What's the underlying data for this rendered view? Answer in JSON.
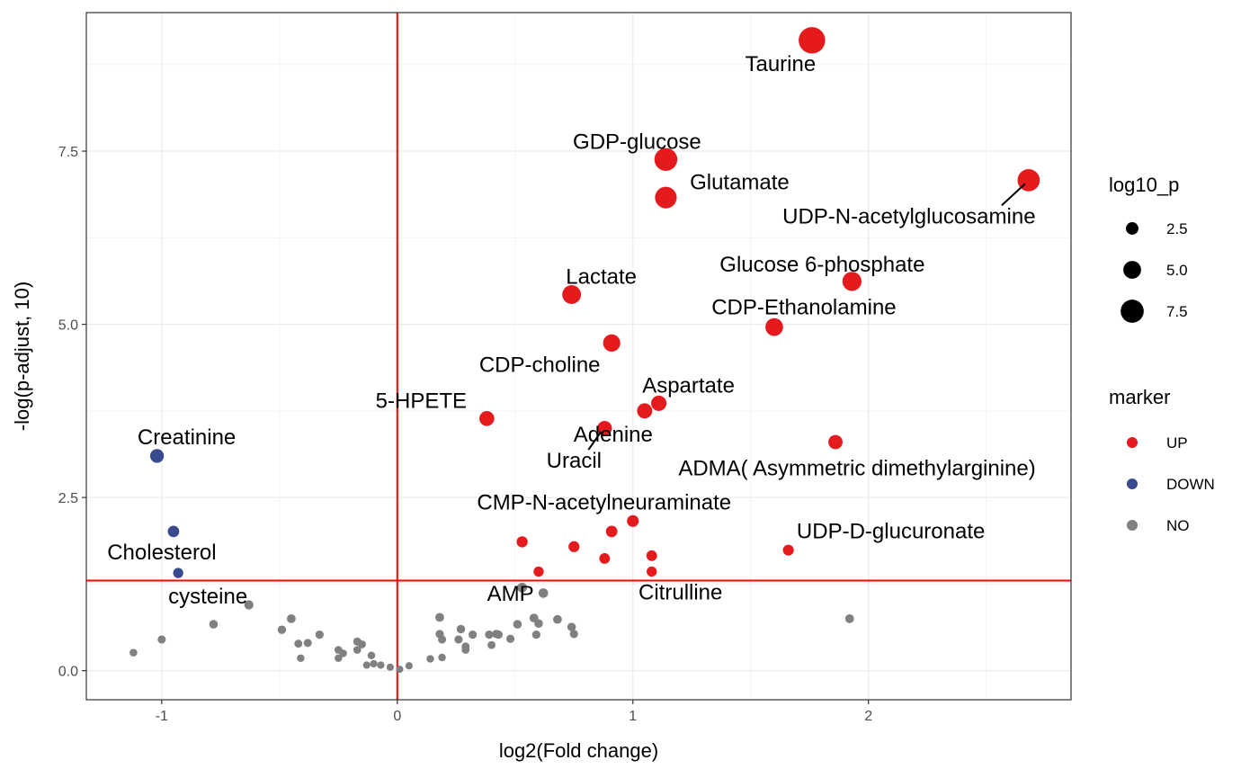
{
  "chart_data": {
    "type": "scatter",
    "title": "",
    "xlabel": "log2(Fold change)",
    "ylabel": "-log(p-adjust, 10)",
    "xlim": [
      -1.32,
      2.86
    ],
    "ylim": [
      -0.42,
      9.5
    ],
    "x_ticks": [
      -1,
      0,
      1,
      2
    ],
    "x_tick_labels": [
      "-1",
      "0",
      "1",
      "2"
    ],
    "y_ticks": [
      0,
      2.5,
      5,
      7.5
    ],
    "y_tick_labels": [
      "0.0",
      "2.5",
      "5.0",
      "7.5"
    ],
    "grid": true,
    "reference_lines": {
      "vline_x": 0,
      "hline_y": 1.3,
      "color": "#ff0000"
    },
    "colors": {
      "UP": "#e41a1c",
      "DOWN": "#3a4a8f",
      "NO": "#808080"
    },
    "size_legend": {
      "title": "log10_p",
      "values": [
        2.5,
        5.0,
        7.5
      ],
      "labels": [
        "2.5",
        "5.0",
        "7.5"
      ]
    },
    "color_legend": {
      "title": "marker",
      "entries": [
        "UP",
        "DOWN",
        "NO"
      ]
    },
    "legend_position": "right",
    "labeled_points": [
      {
        "label": "Taurine",
        "x": 1.76,
        "y": 9.1,
        "marker": "UP"
      },
      {
        "label": "GDP-glucose",
        "x": 1.14,
        "y": 7.38,
        "marker": "UP"
      },
      {
        "label": "Glutamate",
        "x": 1.14,
        "y": 6.83,
        "marker": "UP"
      },
      {
        "label": "UDP-N-acetylglucosamine",
        "x": 2.68,
        "y": 7.08,
        "marker": "UP"
      },
      {
        "label": "Lactate",
        "x": 0.74,
        "y": 5.43,
        "marker": "UP"
      },
      {
        "label": "Glucose 6-phosphate",
        "x": 1.93,
        "y": 5.62,
        "marker": "UP"
      },
      {
        "label": "CDP-Ethanolamine",
        "x": 1.6,
        "y": 4.96,
        "marker": "UP"
      },
      {
        "label": "CDP-choline",
        "x": 0.91,
        "y": 4.73,
        "marker": "UP"
      },
      {
        "label": "Aspartate",
        "x": 1.11,
        "y": 3.86,
        "marker": "UP"
      },
      {
        "label": "5-HPETE",
        "x": 0.38,
        "y": 3.64,
        "marker": "UP"
      },
      {
        "label": "Adenine",
        "x": 1.05,
        "y": 3.75,
        "marker": "UP"
      },
      {
        "label": "Uracil",
        "x": 0.88,
        "y": 3.5,
        "marker": "UP"
      },
      {
        "label": "ADMA( Asymmetric dimethylarginine)",
        "x": 1.86,
        "y": 3.3,
        "marker": "UP"
      },
      {
        "label": "Creatinine",
        "x": -1.02,
        "y": 3.1,
        "marker": "DOWN"
      },
      {
        "label": "CMP-N-acetylneuraminate",
        "x": 1.0,
        "y": 2.16,
        "marker": "UP"
      },
      {
        "label": "UDP-D-glucuronate",
        "x": 1.66,
        "y": 1.74,
        "marker": "UP"
      },
      {
        "label": "Cholesterol",
        "x": -0.95,
        "y": 2.01,
        "marker": "DOWN"
      },
      {
        "label": "cysteine",
        "x": -0.93,
        "y": 1.41,
        "marker": "DOWN"
      },
      {
        "label": "AMP",
        "x": 0.53,
        "y": 1.2,
        "marker": "NO"
      },
      {
        "label": "Citrulline",
        "x": 1.08,
        "y": 1.43,
        "marker": "UP"
      }
    ],
    "points": [
      {
        "x": 1.76,
        "y": 9.1,
        "marker": "UP"
      },
      {
        "x": 1.14,
        "y": 7.38,
        "marker": "UP"
      },
      {
        "x": 1.14,
        "y": 6.83,
        "marker": "UP"
      },
      {
        "x": 2.68,
        "y": 7.08,
        "marker": "UP"
      },
      {
        "x": 0.74,
        "y": 5.43,
        "marker": "UP"
      },
      {
        "x": 1.93,
        "y": 5.62,
        "marker": "UP"
      },
      {
        "x": 1.6,
        "y": 4.96,
        "marker": "UP"
      },
      {
        "x": 0.91,
        "y": 4.73,
        "marker": "UP"
      },
      {
        "x": 1.11,
        "y": 3.86,
        "marker": "UP"
      },
      {
        "x": 1.05,
        "y": 3.75,
        "marker": "UP"
      },
      {
        "x": 0.38,
        "y": 3.64,
        "marker": "UP"
      },
      {
        "x": 0.88,
        "y": 3.5,
        "marker": "UP"
      },
      {
        "x": 1.86,
        "y": 3.3,
        "marker": "UP"
      },
      {
        "x": -1.02,
        "y": 3.1,
        "marker": "DOWN"
      },
      {
        "x": 1.0,
        "y": 2.16,
        "marker": "UP"
      },
      {
        "x": 0.91,
        "y": 2.01,
        "marker": "UP"
      },
      {
        "x": 0.53,
        "y": 1.86,
        "marker": "UP"
      },
      {
        "x": 0.75,
        "y": 1.79,
        "marker": "UP"
      },
      {
        "x": 1.66,
        "y": 1.74,
        "marker": "UP"
      },
      {
        "x": 1.08,
        "y": 1.66,
        "marker": "UP"
      },
      {
        "x": 0.88,
        "y": 1.62,
        "marker": "UP"
      },
      {
        "x": 0.6,
        "y": 1.43,
        "marker": "UP"
      },
      {
        "x": 1.08,
        "y": 1.43,
        "marker": "UP"
      },
      {
        "x": -0.95,
        "y": 2.01,
        "marker": "DOWN"
      },
      {
        "x": -0.93,
        "y": 1.41,
        "marker": "DOWN"
      },
      {
        "x": 0.53,
        "y": 1.2,
        "marker": "NO"
      },
      {
        "x": 0.62,
        "y": 1.12,
        "marker": "NO"
      },
      {
        "x": 1.92,
        "y": 0.75,
        "marker": "NO"
      },
      {
        "x": -0.63,
        "y": 0.95,
        "marker": "NO"
      },
      {
        "x": -0.45,
        "y": 0.75,
        "marker": "NO"
      },
      {
        "x": -0.78,
        "y": 0.67,
        "marker": "NO"
      },
      {
        "x": -0.49,
        "y": 0.59,
        "marker": "NO"
      },
      {
        "x": -0.33,
        "y": 0.52,
        "marker": "NO"
      },
      {
        "x": -0.42,
        "y": 0.39,
        "marker": "NO"
      },
      {
        "x": -0.38,
        "y": 0.4,
        "marker": "NO"
      },
      {
        "x": -1.0,
        "y": 0.45,
        "marker": "NO"
      },
      {
        "x": -1.12,
        "y": 0.26,
        "marker": "NO"
      },
      {
        "x": -0.25,
        "y": 0.3,
        "marker": "NO"
      },
      {
        "x": -0.23,
        "y": 0.25,
        "marker": "NO"
      },
      {
        "x": -0.17,
        "y": 0.42,
        "marker": "NO"
      },
      {
        "x": -0.15,
        "y": 0.38,
        "marker": "NO"
      },
      {
        "x": -0.17,
        "y": 0.3,
        "marker": "NO"
      },
      {
        "x": -0.41,
        "y": 0.18,
        "marker": "NO"
      },
      {
        "x": -0.25,
        "y": 0.18,
        "marker": "NO"
      },
      {
        "x": -0.11,
        "y": 0.22,
        "marker": "NO"
      },
      {
        "x": -0.13,
        "y": 0.08,
        "marker": "NO"
      },
      {
        "x": -0.1,
        "y": 0.1,
        "marker": "NO"
      },
      {
        "x": -0.07,
        "y": 0.08,
        "marker": "NO"
      },
      {
        "x": -0.03,
        "y": 0.05,
        "marker": "NO"
      },
      {
        "x": 0.01,
        "y": 0.02,
        "marker": "NO"
      },
      {
        "x": 0.05,
        "y": 0.07,
        "marker": "NO"
      },
      {
        "x": 0.14,
        "y": 0.17,
        "marker": "NO"
      },
      {
        "x": 0.18,
        "y": 0.77,
        "marker": "NO"
      },
      {
        "x": 0.18,
        "y": 0.53,
        "marker": "NO"
      },
      {
        "x": 0.19,
        "y": 0.45,
        "marker": "NO"
      },
      {
        "x": 0.19,
        "y": 0.19,
        "marker": "NO"
      },
      {
        "x": 0.26,
        "y": 0.45,
        "marker": "NO"
      },
      {
        "x": 0.27,
        "y": 0.6,
        "marker": "NO"
      },
      {
        "x": 0.29,
        "y": 0.35,
        "marker": "NO"
      },
      {
        "x": 0.29,
        "y": 0.3,
        "marker": "NO"
      },
      {
        "x": 0.32,
        "y": 0.52,
        "marker": "NO"
      },
      {
        "x": 0.39,
        "y": 0.52,
        "marker": "NO"
      },
      {
        "x": 0.4,
        "y": 0.37,
        "marker": "NO"
      },
      {
        "x": 0.42,
        "y": 0.53,
        "marker": "NO"
      },
      {
        "x": 0.43,
        "y": 0.52,
        "marker": "NO"
      },
      {
        "x": 0.48,
        "y": 0.46,
        "marker": "NO"
      },
      {
        "x": 0.51,
        "y": 0.67,
        "marker": "NO"
      },
      {
        "x": 0.58,
        "y": 0.76,
        "marker": "NO"
      },
      {
        "x": 0.59,
        "y": 0.52,
        "marker": "NO"
      },
      {
        "x": 0.6,
        "y": 0.68,
        "marker": "NO"
      },
      {
        "x": 0.68,
        "y": 0.74,
        "marker": "NO"
      },
      {
        "x": 0.74,
        "y": 0.63,
        "marker": "NO"
      },
      {
        "x": 0.75,
        "y": 0.53,
        "marker": "NO"
      }
    ]
  }
}
